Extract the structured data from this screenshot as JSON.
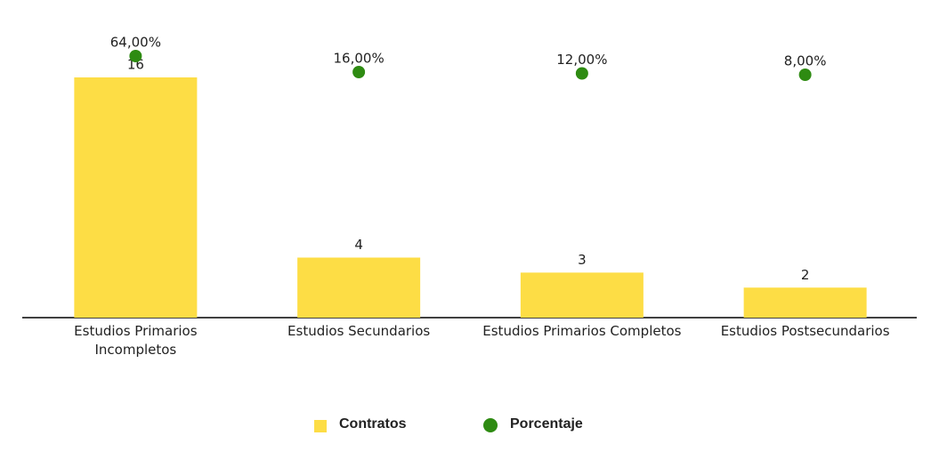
{
  "chart_data": {
    "type": "bar-dot",
    "categories": [
      "Estudios Primarios Incompletos",
      "Estudios Secundarios",
      "Estudios Primarios Completos",
      "Estudios Postsecundarios"
    ],
    "series": [
      {
        "name": "Contratos",
        "type": "bar",
        "color": "#fddd45",
        "values": [
          16,
          4,
          3,
          2
        ]
      },
      {
        "name": "Porcentaje",
        "type": "dot",
        "axis": "y2",
        "color": "#2e8b12",
        "values": [
          64,
          16,
          12,
          8
        ],
        "value_labels": [
          "64,00%",
          "16,00%",
          "12,00%",
          "8,00%"
        ]
      }
    ],
    "ylim": [
      0,
      20
    ],
    "y2lim": [
      -720,
      180
    ],
    "legend": "bottom"
  }
}
